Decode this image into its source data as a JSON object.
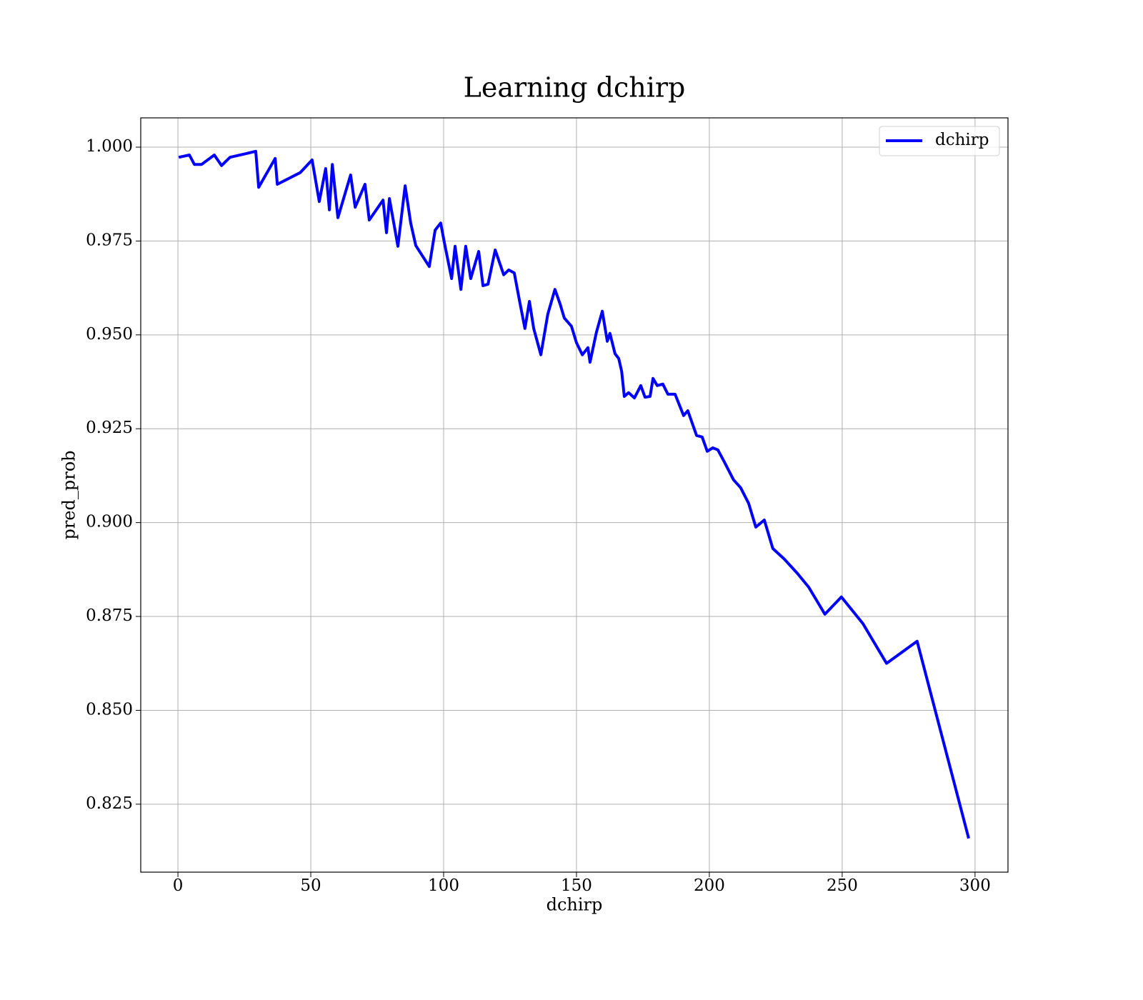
{
  "chart_data": {
    "type": "line",
    "title": "Learning dchirp",
    "xlabel": "dchirp",
    "ylabel": "pred_prob",
    "x": [
      0.3,
      4.3,
      6.2,
      8.9,
      13.7,
      16.4,
      19.6,
      25.8,
      29.3,
      30.4,
      36.6,
      37.4,
      46,
      50.5,
      53.2,
      55.6,
      57,
      58.1,
      60.2,
      65,
      66.7,
      70.4,
      72,
      77.2,
      78.5,
      79.6,
      82.8,
      85.5,
      87.6,
      89.5,
      94.6,
      96.8,
      98.9,
      100.3,
      103,
      104.3,
      106.5,
      108.3,
      110.2,
      113.2,
      114.8,
      116.7,
      119.4,
      122.6,
      124.5,
      126.6,
      128.5,
      130.6,
      132.3,
      133.9,
      136.6,
      139.2,
      141.9,
      143.8,
      145.4,
      148.1,
      150,
      152.2,
      154.3,
      155.1,
      157.5,
      159.7,
      161.6,
      162.6,
      164.5,
      165.9,
      167,
      168,
      169.6,
      171.8,
      174.2,
      175.8,
      177.7,
      178.8,
      180.4,
      182.5,
      184.4,
      187.1,
      190.3,
      191.9,
      195.2,
      197.3,
      199.2,
      201.3,
      203.2,
      205.4,
      209.1,
      211.8,
      214.8,
      217.5,
      220.7,
      223.9,
      228.2,
      233.1,
      237.4,
      243.5,
      249.7,
      257.8,
      266.7,
      278.2,
      297.6
    ],
    "series": [
      {
        "name": "dchirp",
        "color": "#0000ff",
        "values": [
          0.9973,
          0.9979,
          0.9954,
          0.9954,
          0.9979,
          0.9951,
          0.9973,
          0.9983,
          0.9989,
          0.9893,
          0.997,
          0.9901,
          0.9932,
          0.9966,
          0.9855,
          0.9943,
          0.9833,
          0.9954,
          0.9812,
          0.9926,
          0.984,
          0.9901,
          0.9806,
          0.9859,
          0.9772,
          0.9863,
          0.9736,
          0.9897,
          0.9798,
          0.9738,
          0.9682,
          0.9779,
          0.9798,
          0.9745,
          0.965,
          0.9736,
          0.9621,
          0.9736,
          0.965,
          0.9722,
          0.9631,
          0.9635,
          0.9726,
          0.966,
          0.9673,
          0.9665,
          0.9593,
          0.9517,
          0.9589,
          0.9517,
          0.9447,
          0.9555,
          0.9621,
          0.9583,
          0.9545,
          0.9523,
          0.9479,
          0.9447,
          0.9466,
          0.9427,
          0.9507,
          0.9563,
          0.9483,
          0.9504,
          0.945,
          0.9437,
          0.9403,
          0.9336,
          0.9346,
          0.9332,
          0.9365,
          0.9334,
          0.9336,
          0.9384,
          0.9365,
          0.9369,
          0.9342,
          0.9342,
          0.9285,
          0.9298,
          0.9232,
          0.9228,
          0.919,
          0.9199,
          0.9194,
          0.9165,
          0.9114,
          0.9093,
          0.9051,
          0.8988,
          0.9007,
          0.8931,
          0.8903,
          0.8865,
          0.8828,
          0.8756,
          0.8802,
          0.8731,
          0.8625,
          0.8684,
          0.8159
        ]
      }
    ],
    "xlim": [
      -14,
      312.4
    ],
    "ylim": [
      0.8069,
      1.0078
    ],
    "xticks": [
      0,
      50,
      100,
      150,
      200,
      250,
      300
    ],
    "yticks": [
      0.825,
      {
        "value": 0.85,
        "label": "0.850"
      },
      0.875,
      {
        "value": 0.9,
        "label": "0.900"
      },
      0.925,
      {
        "value": 0.95,
        "label": "0.950"
      },
      0.975,
      {
        "value": 1,
        "label": "1.000"
      }
    ],
    "grid": true,
    "legend": "upper right"
  }
}
